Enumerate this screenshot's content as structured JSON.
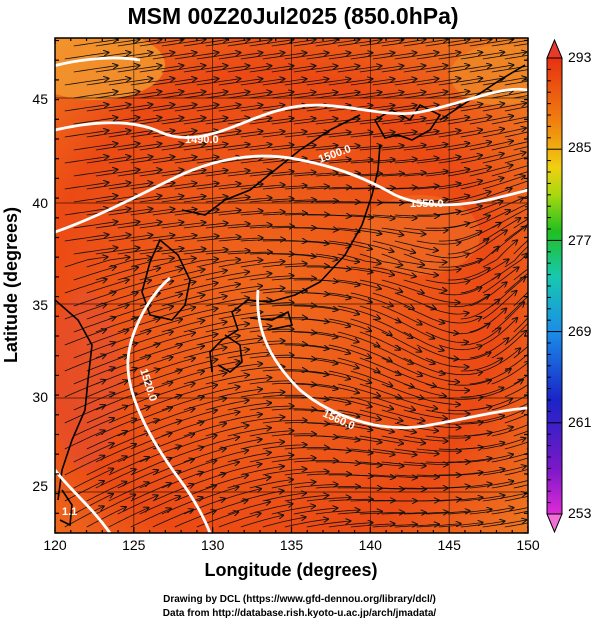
{
  "title": "MSM 00Z20Jul2025 (850.0hPa)",
  "xlabel": "Longitude (degrees)",
  "ylabel": "Latitude  (degrees)",
  "x_ticks": [
    "120",
    "125",
    "130",
    "135",
    "140",
    "145",
    "150"
  ],
  "y_ticks": [
    "25",
    "30",
    "35",
    "40",
    "45"
  ],
  "colorbar": {
    "labels": [
      "293",
      "285",
      "277",
      "269",
      "261",
      "253"
    ],
    "range": [
      253,
      293
    ],
    "colors": [
      "#e02ad8",
      "#7a18c8",
      "#1a24c8",
      "#1a8ee8",
      "#18c8b0",
      "#20c020",
      "#a8d810",
      "#f0d010",
      "#f08010",
      "#e83010"
    ]
  },
  "map": {
    "lon_range": [
      120,
      150
    ],
    "lat_range": [
      22.5,
      47.6
    ],
    "field_colors": [
      "#e83a10",
      "#f06018",
      "#f58020"
    ],
    "contour_labels": [
      "1490.0",
      "1500.0",
      "1550.0",
      "1520.0",
      "1560.0",
      "1.1"
    ]
  },
  "credits": {
    "line1": "Drawing by DCL (https://www.gfd-dennou.org/library/dcl/)",
    "line2": "Data from http://database.rish.kyoto-u.ac.jp/arch/jmadata/"
  }
}
